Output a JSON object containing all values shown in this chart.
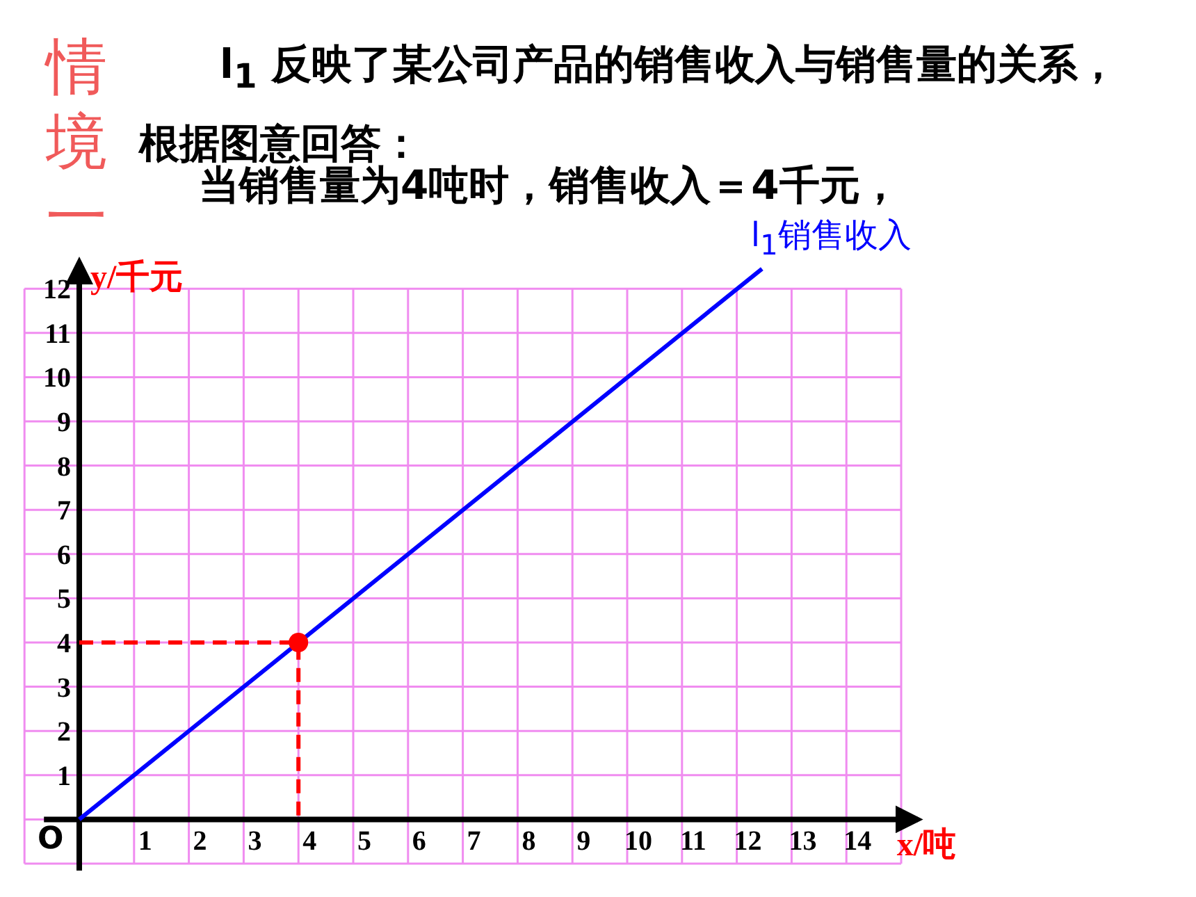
{
  "chart_data": {
    "type": "line",
    "title": "l$_{1}$ 反映了某公司产品的销售收入与销售量的关系，根据图意回答：",
    "subtitle": "当销售量为4吨时，销售收入＝4千元，",
    "xlabel": "x/吨",
    "ylabel": "y/千元",
    "annotations": [
      "情境一",
      "O"
    ],
    "series": [
      {
        "name": "l$_{1}$销售收入",
        "color": "#0000ff",
        "x": [
          0,
          12.46
        ],
        "values": [
          0,
          12.45
        ]
      },
      {
        "type": "line",
        "color": "#ff0000",
        "line_style": "dashed",
        "x": [
          0,
          4,
          4
        ],
        "values": [
          4,
          4,
          0
        ]
      },
      {
        "type": "scatter",
        "color": "#ff0000",
        "marker": "circle",
        "x": [
          4
        ],
        "values": [
          4
        ]
      }
    ],
    "xlim": [
      -1,
      15.3
    ],
    "ylim": [
      -1,
      12.6
    ],
    "xticks": [
      {
        "value": -1,
        "label": null
      },
      {
        "value": 0,
        "label": null
      },
      1,
      2,
      3,
      4,
      5,
      6,
      7,
      8,
      9,
      10,
      11,
      12,
      13,
      14,
      {
        "value": 15,
        "label": null
      }
    ],
    "yticks": [
      {
        "value": -1,
        "label": null
      },
      {
        "value": 0,
        "label": null
      },
      1,
      2,
      3,
      4,
      5,
      6,
      7,
      8,
      9,
      10,
      11,
      12
    ],
    "grid": true
  }
}
